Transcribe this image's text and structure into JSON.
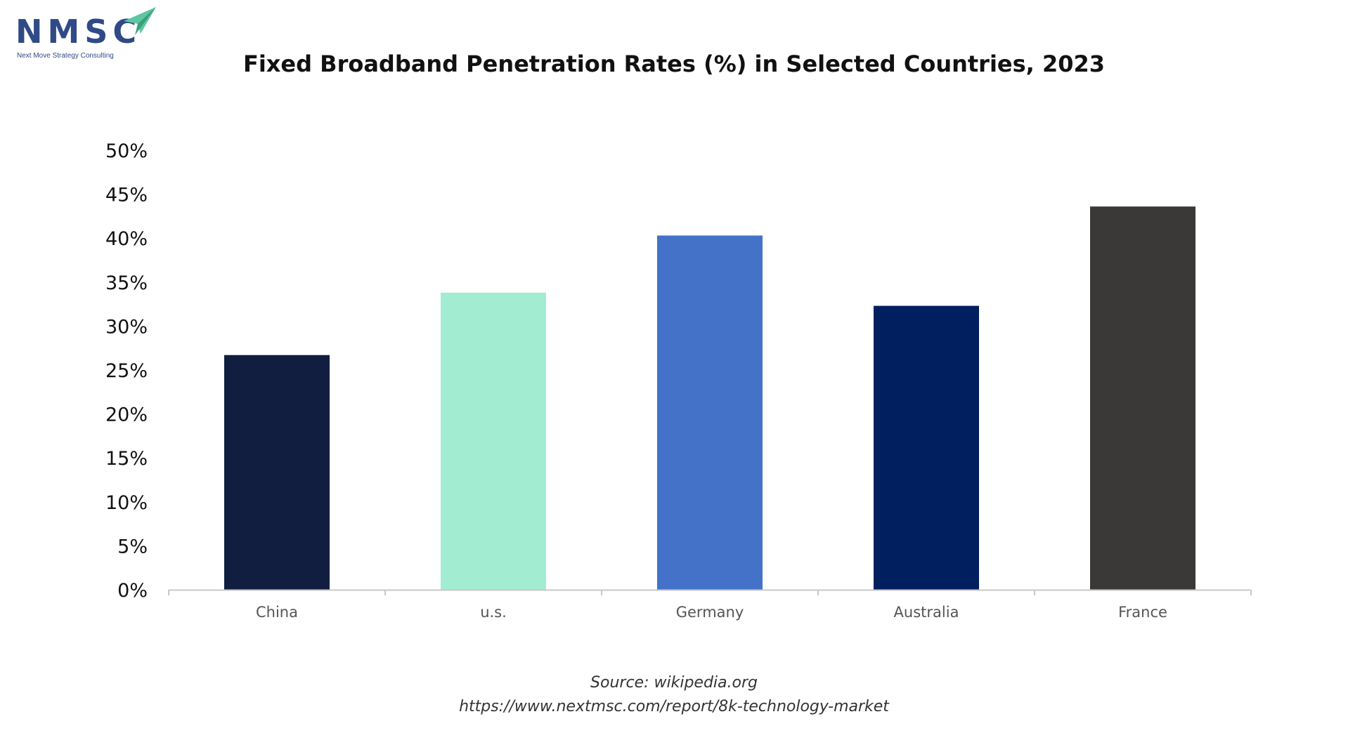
{
  "logo": {
    "name": "NMSC",
    "tagline": "Next Move Strategy Consulting",
    "color": "#2f4a86",
    "accent_color": "#5ec6a0"
  },
  "chart_data": {
    "type": "bar",
    "title": "Fixed Broadband Penetration Rates (%) in Selected Countries, 2023",
    "categories": [
      "China",
      "u.s.",
      "Germany",
      "Australia",
      "France"
    ],
    "values": [
      26.7,
      33.8,
      40.3,
      32.3,
      43.6
    ],
    "colors": [
      "#121e40",
      "#a2ecd2",
      "#4472c8",
      "#011f5e",
      "#3a3938"
    ],
    "ylim": [
      0,
      50
    ],
    "yticks": [
      "0%",
      "5%",
      "10%",
      "15%",
      "20%",
      "25%",
      "30%",
      "35%",
      "40%",
      "45%",
      "50%"
    ],
    "xlabel": "",
    "ylabel": "",
    "grid": false,
    "legend": "none"
  },
  "source": {
    "line1": "Source: wikipedia.org",
    "line2": "https://www.nextmsc.com/report/8k-technology-market"
  }
}
